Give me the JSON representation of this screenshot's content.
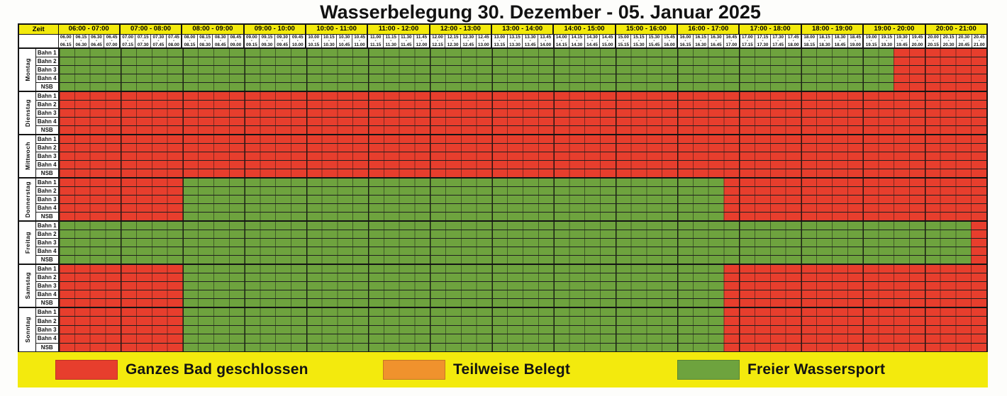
{
  "title": "Wasserbelegung 30. Dezember - 05. Januar 2025",
  "colors": {
    "closed": "#e73e2d",
    "partial": "#f0922d",
    "free": "#6ea33e",
    "header_bg": "#f3ea0d",
    "legend_bg": "#f3ea0d",
    "grid_line": "#1a1a1a"
  },
  "time_axis": {
    "start": "06:00",
    "end": "21:00",
    "step_minutes": 15
  },
  "header": {
    "zeit_label": "Zeit",
    "hours": [
      "06:00 - 07:00",
      "07:00 - 08:00",
      "08:00 - 09:00",
      "09:00 - 10:00",
      "10:00 - 11:00",
      "11:00 - 12:00",
      "12:00 - 13:00",
      "13:00 - 14:00",
      "14:00 - 15:00",
      "15:00 - 16:00",
      "16:00 - 17:00",
      "17:00 - 18:00",
      "18:00 - 19:00",
      "19:00 - 20:00",
      "20:00 - 21:00"
    ],
    "quarters": [
      [
        "06.00",
        "06.15"
      ],
      [
        "06.15",
        "06.30"
      ],
      [
        "06.30",
        "06.45"
      ],
      [
        "06.45",
        "07.00"
      ],
      [
        "07.00",
        "07.15"
      ],
      [
        "07.15",
        "07.30"
      ],
      [
        "07.30",
        "07.45"
      ],
      [
        "07.45",
        "08.00"
      ],
      [
        "08.00",
        "08.15"
      ],
      [
        "08.15",
        "08.30"
      ],
      [
        "08.30",
        "08.45"
      ],
      [
        "08.45",
        "09.00"
      ],
      [
        "09.00",
        "09.15"
      ],
      [
        "09.15",
        "09.30"
      ],
      [
        "09.30",
        "09.45"
      ],
      [
        "09.45",
        "10.00"
      ],
      [
        "10.00",
        "10.15"
      ],
      [
        "10.15",
        "10.30"
      ],
      [
        "10.30",
        "10.45"
      ],
      [
        "10.45",
        "11.00"
      ],
      [
        "11.00",
        "11.15"
      ],
      [
        "11.15",
        "11.30"
      ],
      [
        "11.30",
        "11.45"
      ],
      [
        "11.45",
        "12.00"
      ],
      [
        "12.00",
        "12.15"
      ],
      [
        "12.15",
        "12.30"
      ],
      [
        "12.30",
        "12.45"
      ],
      [
        "12.45",
        "13.00"
      ],
      [
        "13.00",
        "13.15"
      ],
      [
        "13.15",
        "13.30"
      ],
      [
        "13.30",
        "13.45"
      ],
      [
        "13.45",
        "14.00"
      ],
      [
        "14.00",
        "14.15"
      ],
      [
        "14.15",
        "14.30"
      ],
      [
        "14.30",
        "14.45"
      ],
      [
        "14.45",
        "15.00"
      ],
      [
        "15.00",
        "15.15"
      ],
      [
        "15.15",
        "15.30"
      ],
      [
        "15.30",
        "15.45"
      ],
      [
        "15.45",
        "16.00"
      ],
      [
        "16.00",
        "16.15"
      ],
      [
        "16.15",
        "16.30"
      ],
      [
        "16.30",
        "16.45"
      ],
      [
        "16.45",
        "17.00"
      ],
      [
        "17.00",
        "17.15"
      ],
      [
        "17.15",
        "17.30"
      ],
      [
        "17.30",
        "17.45"
      ],
      [
        "17.45",
        "18.00"
      ],
      [
        "18.00",
        "18.15"
      ],
      [
        "18.15",
        "18.30"
      ],
      [
        "18.30",
        "18.45"
      ],
      [
        "18.45",
        "19.00"
      ],
      [
        "19.00",
        "19.15"
      ],
      [
        "19.15",
        "19.30"
      ],
      [
        "19.30",
        "19.45"
      ],
      [
        "19.45",
        "20.00"
      ],
      [
        "20.00",
        "20.15"
      ],
      [
        "20.15",
        "20.30"
      ],
      [
        "20.30",
        "20.45"
      ],
      [
        "20.45",
        "21.00"
      ]
    ]
  },
  "lanes": [
    "Bahn 1",
    "Bahn 2",
    "Bahn 3",
    "Bahn 4",
    "NSB"
  ],
  "days": [
    {
      "name": "Montag",
      "segments": [
        {
          "state": "free",
          "from": "06:00",
          "to": "19:30"
        },
        {
          "state": "closed",
          "from": "19:30",
          "to": "21:00"
        }
      ]
    },
    {
      "name": "Dienstag",
      "segments": [
        {
          "state": "closed",
          "from": "06:00",
          "to": "21:00"
        }
      ]
    },
    {
      "name": "Mittwoch",
      "segments": [
        {
          "state": "closed",
          "from": "06:00",
          "to": "21:00"
        }
      ]
    },
    {
      "name": "Donnerstag",
      "segments": [
        {
          "state": "closed",
          "from": "06:00",
          "to": "08:00"
        },
        {
          "state": "free",
          "from": "08:00",
          "to": "16:45"
        },
        {
          "state": "closed",
          "from": "16:45",
          "to": "21:00"
        }
      ]
    },
    {
      "name": "Freitag",
      "segments": [
        {
          "state": "free",
          "from": "06:00",
          "to": "20:45"
        },
        {
          "state": "closed",
          "from": "20:45",
          "to": "21:00"
        }
      ]
    },
    {
      "name": "Samstag",
      "segments": [
        {
          "state": "closed",
          "from": "06:00",
          "to": "08:00"
        },
        {
          "state": "free",
          "from": "08:00",
          "to": "16:45"
        },
        {
          "state": "closed",
          "from": "16:45",
          "to": "21:00"
        }
      ]
    },
    {
      "name": "Sonntag",
      "segments": [
        {
          "state": "closed",
          "from": "06:00",
          "to": "08:00"
        },
        {
          "state": "free",
          "from": "08:00",
          "to": "16:45"
        },
        {
          "state": "closed",
          "from": "16:45",
          "to": "21:00"
        }
      ]
    }
  ],
  "legend": {
    "items": [
      {
        "label": "Ganzes Bad geschlossen",
        "state": "closed"
      },
      {
        "label": "Teilweise Belegt",
        "state": "partial"
      },
      {
        "label": "Freier Wassersport",
        "state": "free"
      }
    ]
  }
}
